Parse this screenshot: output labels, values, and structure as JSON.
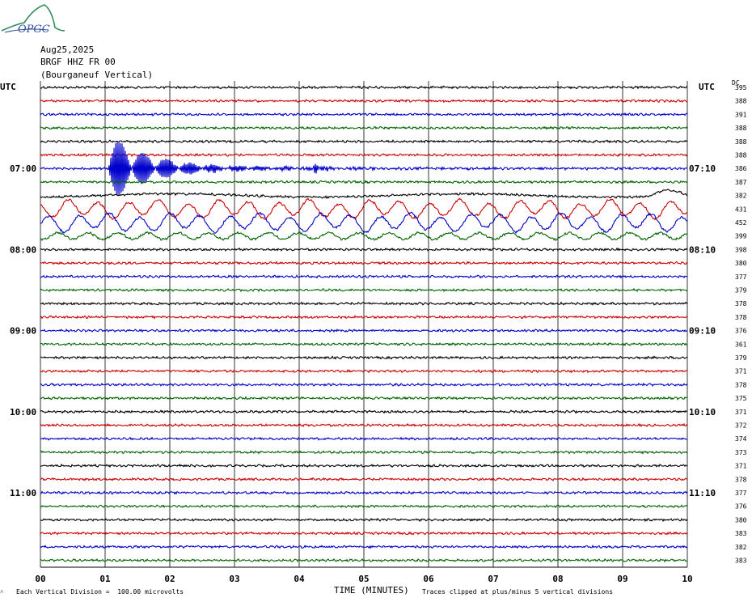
{
  "header": {
    "logo_text": "OPGC",
    "date": "Aug25,2025",
    "station": "BRGF HHZ FR 00",
    "location": "(Bourganeuf Vertical)",
    "utc_left": "UTC",
    "utc_right": "UTC",
    "dc_label": "DC"
  },
  "footer": {
    "vertical_division": "Each Vertical Division =  100.00 microvolts",
    "x_title": "TIME (MINUTES)",
    "clip_note": "Traces clipped at plus/minus 5 vertical divisions"
  },
  "chart_data": {
    "type": "line",
    "title": "BRGF HHZ FR 00 (Bourganeuf Vertical)",
    "xlabel": "TIME (MINUTES)",
    "xlim": [
      0,
      10
    ],
    "x_ticks": [
      "00",
      "01",
      "02",
      "03",
      "04",
      "05",
      "06",
      "07",
      "08",
      "09",
      "10"
    ],
    "grid": true,
    "trace_colors": [
      "#000000",
      "#cc0000",
      "#0000cc",
      "#006600"
    ],
    "left_hour_labels": [
      {
        "row": 6,
        "label": "07:00"
      },
      {
        "row": 12,
        "label": "08:00"
      },
      {
        "row": 18,
        "label": "09:00"
      },
      {
        "row": 24,
        "label": "10:00"
      },
      {
        "row": 30,
        "label": "11:00"
      }
    ],
    "right_hour_labels": [
      {
        "row": 6,
        "label": "07:10"
      },
      {
        "row": 12,
        "label": "08:10"
      },
      {
        "row": 18,
        "label": "09:10"
      },
      {
        "row": 24,
        "label": "10:10"
      },
      {
        "row": 30,
        "label": "11:10"
      }
    ],
    "dc_offsets": [
      395,
      388,
      391,
      388,
      388,
      388,
      386,
      387,
      382,
      431,
      452,
      399,
      398,
      380,
      377,
      379,
      378,
      378,
      376,
      361,
      379,
      371,
      378,
      375,
      371,
      372,
      374,
      373,
      371,
      378,
      377,
      376,
      380,
      383,
      382,
      383
    ],
    "trace_activity": [
      {
        "row": 6,
        "event": "earthquake",
        "onset_minute": 1.05,
        "amplitude_divisions": 3
      },
      {
        "row": 8,
        "event": "long-period drift"
      },
      {
        "row": 9,
        "event": "large long-period waves"
      },
      {
        "row": 10,
        "event": "large long-period waves"
      },
      {
        "row": 11,
        "event": "long-period waves"
      }
    ]
  }
}
